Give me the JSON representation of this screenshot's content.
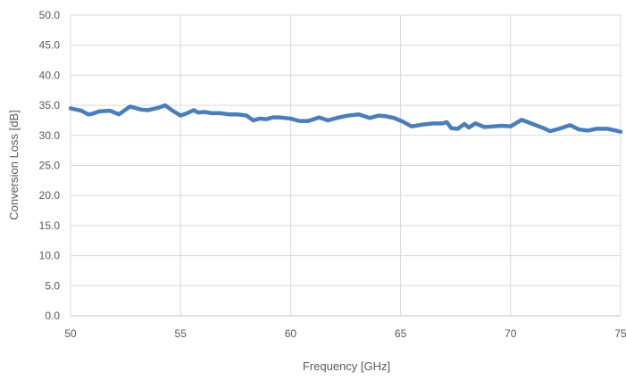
{
  "colors": {
    "series": "#4a7ebb",
    "grid": "#d9d9d9",
    "axis": "#bfbfbf",
    "text": "#595959"
  },
  "chart_data": {
    "type": "line",
    "title": "",
    "xlabel": "Frequency [GHz]",
    "ylabel": "Conversion Loss [dB]",
    "xlim": [
      50,
      75
    ],
    "ylim": [
      0,
      50
    ],
    "x_ticks": [
      "50",
      "55",
      "60",
      "65",
      "70",
      "75"
    ],
    "y_ticks": [
      "0.0",
      "5.0",
      "10.0",
      "15.0",
      "20.0",
      "25.0",
      "30.0",
      "35.0",
      "40.0",
      "45.0",
      "50.0"
    ],
    "grid": true,
    "legend": "none",
    "series": [
      {
        "x": [
          50.0,
          50.5,
          50.8,
          51.0,
          51.3,
          51.8,
          52.2,
          52.7,
          53.2,
          53.5,
          54.0,
          54.3,
          54.6,
          55.0,
          55.3,
          55.6,
          55.8,
          56.1,
          56.4,
          56.8,
          57.2,
          57.6,
          58.0,
          58.3,
          58.6,
          58.9,
          59.2,
          59.5,
          60.0,
          60.4,
          60.8,
          61.3,
          61.7,
          62.1,
          62.6,
          63.1,
          63.6,
          64.0,
          64.3,
          64.7,
          65.1,
          65.5,
          66.0,
          66.5,
          66.9,
          67.1,
          67.3,
          67.6,
          67.9,
          68.1,
          68.4,
          68.8,
          69.2,
          69.6,
          70.0,
          70.5,
          71.0,
          71.5,
          71.8,
          72.2,
          72.7,
          73.1,
          73.5,
          73.9,
          74.4,
          74.8,
          75.0
        ],
        "y": [
          34.5,
          34.1,
          33.5,
          33.6,
          34.0,
          34.1,
          33.5,
          34.8,
          34.3,
          34.2,
          34.6,
          35.0,
          34.2,
          33.3,
          33.7,
          34.2,
          33.8,
          33.9,
          33.7,
          33.7,
          33.5,
          33.5,
          33.3,
          32.5,
          32.8,
          32.7,
          33.0,
          33.0,
          32.8,
          32.4,
          32.4,
          33.0,
          32.5,
          32.9,
          33.3,
          33.5,
          32.9,
          33.3,
          33.2,
          32.9,
          32.3,
          31.5,
          31.8,
          32.0,
          32.0,
          32.2,
          31.2,
          31.1,
          31.9,
          31.3,
          32.0,
          31.4,
          31.5,
          31.6,
          31.5,
          32.6,
          31.9,
          31.2,
          30.7,
          31.1,
          31.7,
          31.0,
          30.8,
          31.1,
          31.1,
          30.8,
          30.6
        ]
      }
    ]
  }
}
